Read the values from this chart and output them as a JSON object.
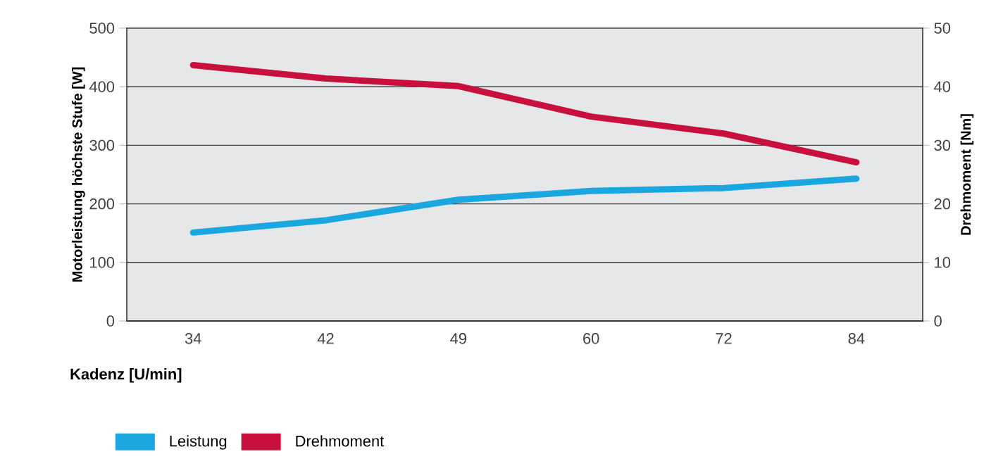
{
  "chart_data": {
    "type": "line",
    "xlabel": "Kadenz [U/min]",
    "ylabel": "Motorleistung höchste Stufe [W]",
    "y2label": "Drehmoment [Nm]",
    "categories": [
      "34",
      "42",
      "49",
      "60",
      "72",
      "84"
    ],
    "series": [
      {
        "name": "Leistung",
        "color": "#1aa7e0",
        "values": [
          151,
          172,
          207,
          222,
          227,
          243
        ]
      },
      {
        "name": "Drehmoment",
        "color": "#c8103e",
        "axis": "y2",
        "values": [
          43.7,
          41.4,
          40.1,
          34.9,
          32,
          27.1
        ]
      }
    ],
    "ylim": [
      0,
      500
    ],
    "yticks": [
      0,
      100,
      200,
      300,
      400,
      500
    ],
    "y2lim": [
      0,
      50
    ],
    "y2ticks": [
      0,
      10,
      20,
      30,
      40,
      50
    ],
    "grid": "y",
    "legend": "bottom"
  }
}
